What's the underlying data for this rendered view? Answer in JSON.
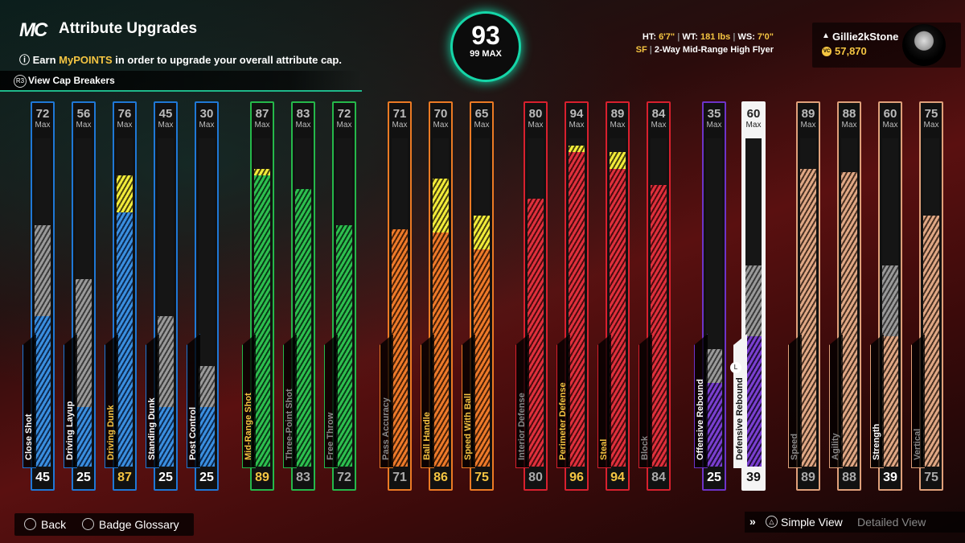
{
  "header": {
    "logo": "MC",
    "title": "Attribute Upgrades",
    "subtitle_pre": "Earn ",
    "subtitle_highlight": "MyPOINTS",
    "subtitle_post": " in order to upgrade your overall attribute cap.",
    "cap_breakers_label": "View Cap Breakers"
  },
  "overall": {
    "value": "93",
    "max_label": "99 MAX"
  },
  "player_info": {
    "ht_label": "HT:",
    "ht": "6'7\"",
    "wt_label": "WT:",
    "wt": "181 lbs",
    "ws_label": "WS:",
    "ws": "7'0\"",
    "position": "SF",
    "archetype": "2-Way Mid-Range High Flyer"
  },
  "user": {
    "name": "Gillie2kStone",
    "vc": "57,870",
    "platform_icon": "playstation-icon",
    "vc_icon": "vc-coin-icon"
  },
  "attributes": [
    {
      "key": "close-shot",
      "label": "Close Shot",
      "current": 45,
      "max": 72,
      "upgrade": 0,
      "color": "blue",
      "labelColor": "#ffffff"
    },
    {
      "key": "driving-layup",
      "label": "Driving Layup",
      "current": 25,
      "max": 56,
      "upgrade": 0,
      "color": "blue",
      "labelColor": "#ffffff"
    },
    {
      "key": "driving-dunk",
      "label": "Driving Dunk",
      "current": 87,
      "max": 76,
      "upgrade": 1,
      "color": "blue",
      "labelColor": "#f5c542"
    },
    {
      "key": "standing-dunk",
      "label": "Standing Dunk",
      "current": 25,
      "max": 45,
      "upgrade": 0,
      "color": "blue",
      "labelColor": "#ffffff"
    },
    {
      "key": "post-control",
      "label": "Post Control",
      "current": 25,
      "max": 30,
      "upgrade": 0,
      "color": "blue",
      "labelColor": "#ffffff"
    },
    {
      "key": "mid-range-shot",
      "label": "Mid-Range Shot",
      "current": 89,
      "max": 87,
      "upgrade": 1,
      "color": "green",
      "labelColor": "#f5c542"
    },
    {
      "key": "three-point-shot",
      "label": "Three-Point Shot",
      "current": 83,
      "max": 83,
      "upgrade": 0,
      "color": "green",
      "labelColor": "#888888"
    },
    {
      "key": "free-throw",
      "label": "Free Throw",
      "current": 72,
      "max": 72,
      "upgrade": 0,
      "color": "green",
      "labelColor": "#888888"
    },
    {
      "key": "pass-accuracy",
      "label": "Pass Accuracy",
      "current": 71,
      "max": 71,
      "upgrade": 0,
      "color": "orange",
      "labelColor": "#888888"
    },
    {
      "key": "ball-handle",
      "label": "Ball Handle",
      "current": 86,
      "max": 70,
      "upgrade": 1,
      "color": "orange",
      "labelColor": "#f5c542"
    },
    {
      "key": "speed-with-ball",
      "label": "Speed With Ball",
      "current": 75,
      "max": 65,
      "upgrade": 1,
      "color": "orange",
      "labelColor": "#f5c542"
    },
    {
      "key": "interior-defense",
      "label": "Interior Defense",
      "current": 80,
      "max": 80,
      "upgrade": 0,
      "color": "red",
      "labelColor": "#888888"
    },
    {
      "key": "perimeter-defense",
      "label": "Perimeter Defense",
      "current": 96,
      "max": 94,
      "upgrade": 1,
      "color": "red",
      "labelColor": "#f5c542"
    },
    {
      "key": "steal",
      "label": "Steal",
      "current": 94,
      "max": 89,
      "upgrade": 1,
      "color": "red",
      "labelColor": "#f5c542"
    },
    {
      "key": "block",
      "label": "Block",
      "current": 84,
      "max": 84,
      "upgrade": 0,
      "color": "red",
      "labelColor": "#888888"
    },
    {
      "key": "offensive-rebound",
      "label": "Offensive Rebound",
      "current": 25,
      "max": 35,
      "upgrade": 0,
      "color": "purple",
      "labelColor": "#ffffff"
    },
    {
      "key": "defensive-rebound",
      "label": "Defensive Rebound",
      "current": 39,
      "max": 60,
      "upgrade": 0,
      "color": "purple",
      "labelColor": "#ffffff",
      "selected": true
    },
    {
      "key": "speed",
      "label": "Speed",
      "current": 89,
      "max": 89,
      "upgrade": 0,
      "color": "tan",
      "labelColor": "#888888"
    },
    {
      "key": "agility",
      "label": "Agility",
      "current": 88,
      "max": 88,
      "upgrade": 0,
      "color": "tan",
      "labelColor": "#888888"
    },
    {
      "key": "strength",
      "label": "Strength",
      "current": 39,
      "max": 60,
      "upgrade": 0,
      "color": "tan",
      "labelColor": "#ffffff"
    },
    {
      "key": "vertical",
      "label": "Vertical",
      "current": 75,
      "max": 75,
      "upgrade": 0,
      "color": "tan",
      "labelColor": "#888888"
    }
  ],
  "max_label": "Max",
  "colors": {
    "blue": "#1f78d6",
    "green": "#25b84a",
    "orange": "#ec7a24",
    "red": "#d8202e",
    "purple": "#6d33c8",
    "tan": "#e0a07a",
    "accent": "#15d6a8",
    "gold": "#f5c542"
  },
  "footer": {
    "back": "Back",
    "badge_glossary": "Badge Glossary",
    "simple_view": "Simple View",
    "detailed_view": "Detailed View"
  }
}
